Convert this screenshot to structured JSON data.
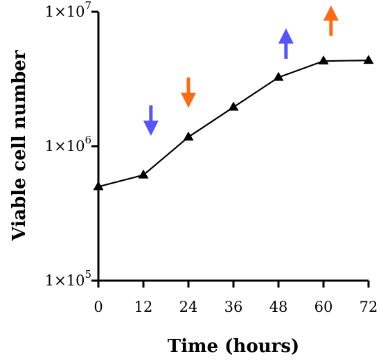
{
  "chart_data": {
    "type": "line",
    "title": "",
    "xlabel": "Time (hours)",
    "ylabel": "Viable cell number",
    "xlim": [
      0,
      72
    ],
    "ylim": [
      100000,
      10000000
    ],
    "y_scale": "log",
    "grid": false,
    "x_ticks": [
      {
        "value": 0,
        "label": "0"
      },
      {
        "value": 12,
        "label": "12"
      },
      {
        "value": 24,
        "label": "24"
      },
      {
        "value": 36,
        "label": "36"
      },
      {
        "value": 48,
        "label": "48"
      },
      {
        "value": 60,
        "label": "60"
      },
      {
        "value": 72,
        "label": "72"
      }
    ],
    "y_ticks": [
      {
        "value": 100000,
        "base": "1×10",
        "exp": "5"
      },
      {
        "value": 1000000,
        "base": "1×10",
        "exp": "6"
      },
      {
        "value": 10000000,
        "base": "1×10",
        "exp": "7"
      }
    ],
    "series": [
      {
        "marker": "triangle",
        "color": "#000000",
        "x": [
          0,
          12,
          24,
          36,
          48,
          60,
          72
        ],
        "y": [
          500000,
          610000,
          1170000,
          1950000,
          3250000,
          4300000,
          4350000
        ]
      }
    ],
    "annotations": [
      {
        "type": "arrow",
        "direction": "down",
        "color": "#5555ff",
        "x": 14,
        "y": 1550000
      },
      {
        "type": "arrow",
        "direction": "down",
        "color": "#ff6a13",
        "x": 24,
        "y": 2500000
      },
      {
        "type": "arrow",
        "direction": "up",
        "color": "#5555ff",
        "x": 50,
        "y": 5800000
      },
      {
        "type": "arrow",
        "direction": "up",
        "color": "#ff6a13",
        "x": 62,
        "y": 8600000
      }
    ]
  }
}
